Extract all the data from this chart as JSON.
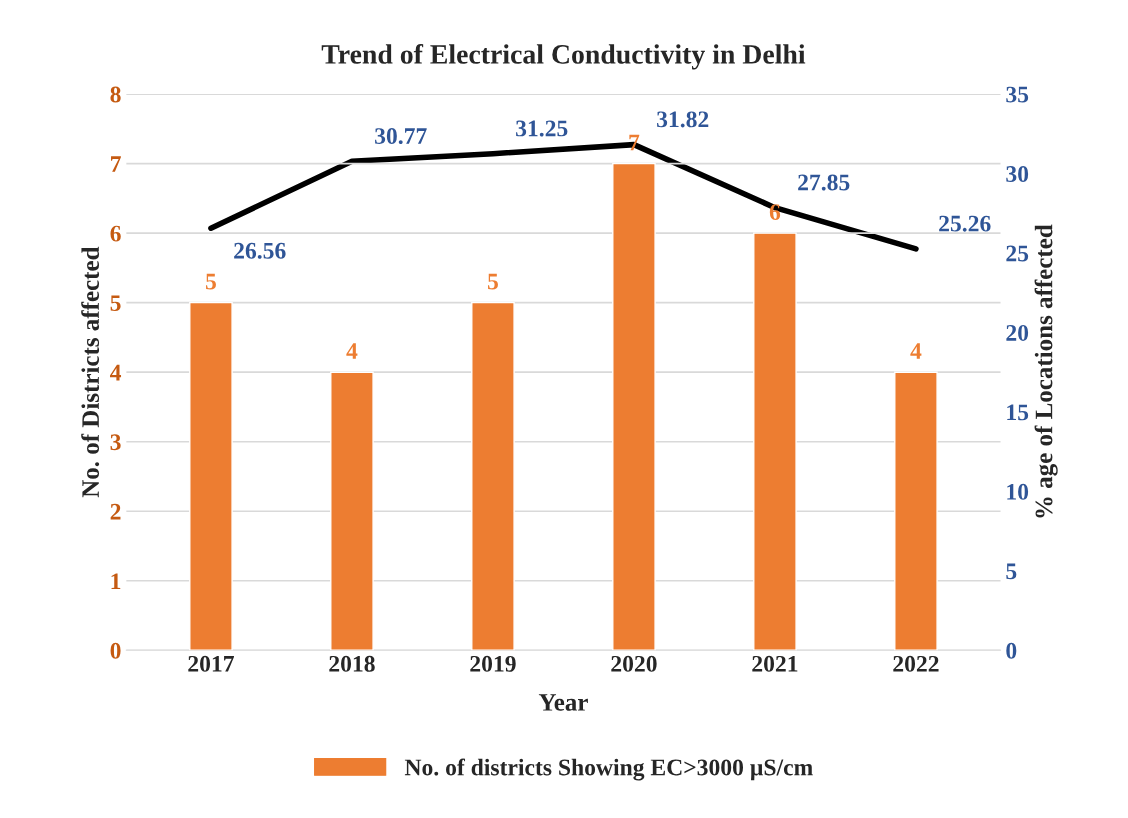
{
  "chart_data": {
    "type": "bar",
    "title": "Trend of Electrical Conductivity in Delhi",
    "xlabel": "Year",
    "ylabel": "No. of Districts affected",
    "y2label": "% age of Locations affected",
    "categories": [
      "2017",
      "2018",
      "2019",
      "2020",
      "2021",
      "2022"
    ],
    "series": [
      {
        "name": "No. of districts Showing EC>3000 µS/cm",
        "color": "#ed7d31",
        "values": [
          5,
          4,
          5,
          7,
          6,
          4
        ]
      },
      {
        "type": "line",
        "axis": "y2",
        "color": "#000000",
        "values": [
          26.56,
          30.77,
          31.25,
          31.82,
          27.85,
          25.26
        ]
      }
    ],
    "data_labels": true,
    "ylim": [
      0,
      8
    ],
    "yticks": [
      0,
      1,
      2,
      3,
      4,
      5,
      6,
      7,
      8
    ],
    "y2lim": [
      0,
      35
    ],
    "y2ticks": [
      0,
      5,
      10,
      15,
      20,
      25,
      30,
      35
    ],
    "grid": "y",
    "legend": "bottom",
    "marker": "none",
    "line_style": "solid"
  }
}
